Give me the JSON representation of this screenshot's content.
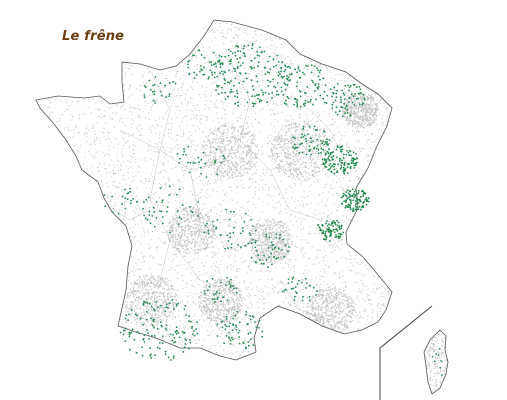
{
  "map": {
    "title": "Le frêne"
  },
  "colors": {
    "background": "#ffffff",
    "title": "#6b3f12",
    "survey_points": "#c8c8c8",
    "presence_points": "#1f8a4c",
    "boundary": "#555555"
  },
  "legend_semantics": {
    "points_gray": "survey-points",
    "points_green": "presence-points"
  }
}
